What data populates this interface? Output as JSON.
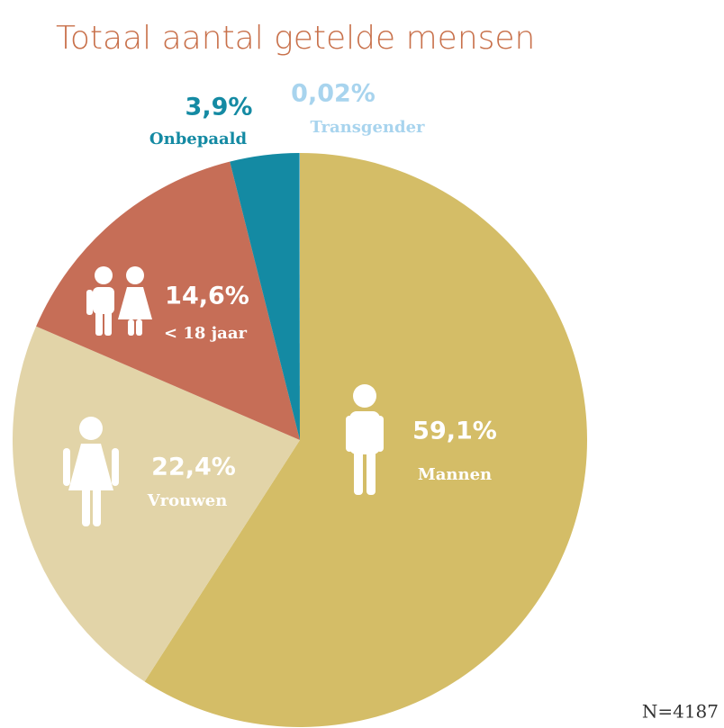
{
  "chart_data": {
    "type": "pie",
    "title": "Totaal aantal getelde mensen",
    "categories": [
      "Mannen",
      "Vrouwen",
      "< 18 jaar",
      "Onbepaald",
      "Transgender"
    ],
    "values": [
      59.1,
      22.4,
      14.6,
      3.9,
      0.02
    ],
    "value_labels": [
      "59,1%",
      "22,4%",
      "14,6%",
      "3,9%",
      "0,02%"
    ],
    "colors": [
      "#d4bd67",
      "#e2d4a8",
      "#c66e57",
      "#148aa3",
      "#a8d4ee"
    ],
    "note": "N=4187"
  }
}
